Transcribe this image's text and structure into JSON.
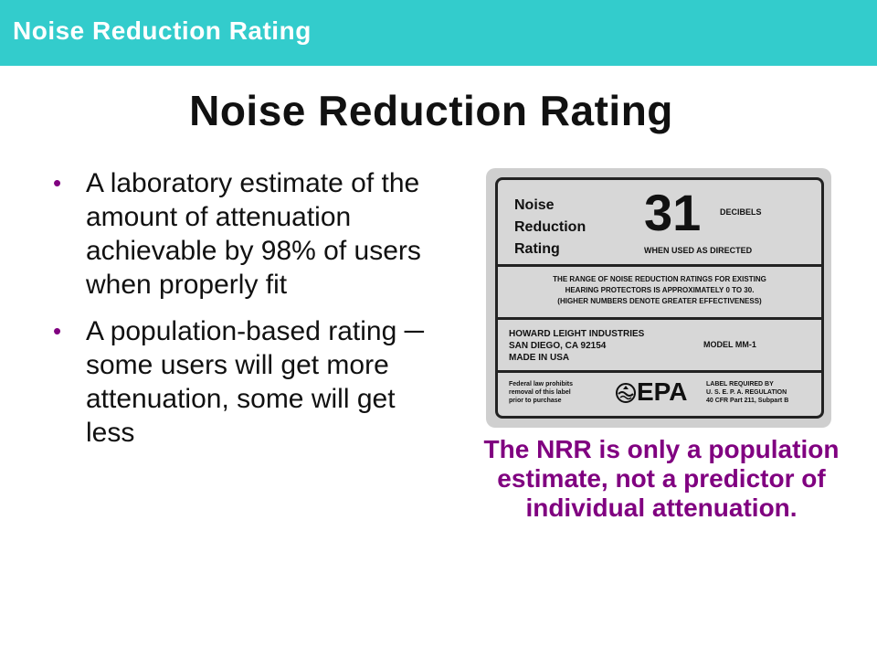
{
  "header": {
    "title": "Noise Reduction Rating",
    "bar_color": "#33cccc"
  },
  "slide": {
    "title": "Noise Reduction Rating",
    "bullets": [
      {
        "text": "A laboratory estimate of the amount of attenuation achievable by 98% of users when properly fit"
      },
      {
        "text": "A population-based rating ─ some users will get more attenuation, some will get less"
      }
    ],
    "bullet_color": "#800080",
    "caption": "The NRR is only a population estimate, not a predictor of individual attenuation.",
    "caption_color": "#800080"
  },
  "label": {
    "nrr_words": [
      "Noise",
      "Reduction",
      "Rating"
    ],
    "nrr_value": "31",
    "unit": "DECIBELS",
    "used_as": "WHEN USED AS DIRECTED",
    "range_lines": [
      "THE RANGE OF NOISE REDUCTION RATINGS FOR EXISTING",
      "HEARING PROTECTORS IS APPROXIMATELY 0 TO 30.",
      "(HIGHER NUMBERS DENOTE GREATER EFFECTIVENESS)"
    ],
    "manufacturer_lines": [
      "HOWARD LEIGHT INDUSTRIES",
      "SAN DIEGO, CA 92154",
      "MADE IN USA"
    ],
    "model": "MODEL MM-1",
    "federal_lines": [
      "Federal law prohibits",
      "removal of this label",
      "prior to purchase"
    ],
    "epa": "EPA",
    "regulation_lines": [
      "LABEL REQUIRED BY",
      "U. S. E. P. A. REGULATION",
      "40 CFR Part 211, Subpart B"
    ]
  }
}
